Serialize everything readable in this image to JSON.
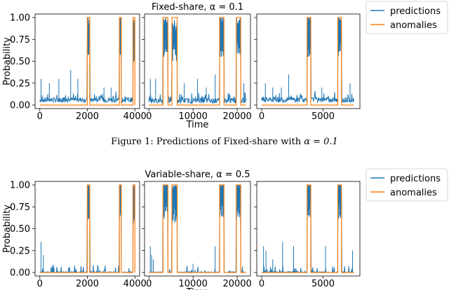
{
  "caption": {
    "prefix": "Figure 1: Predictions of Fixed-share with ",
    "math": "α = 0.1"
  },
  "colors": {
    "predictions": "#1f77b4",
    "anomalies": "#ff7f0e",
    "axis": "#000000"
  },
  "chart_data": [
    {
      "type": "line",
      "title": "Fixed-share, α = 0.1",
      "ylabel": "Probability",
      "xlabel": "Time",
      "legend": {
        "placement": "outside-right",
        "entries": [
          "predictions",
          "anomalies"
        ]
      },
      "yticks": [
        "0.00",
        "0.25",
        "0.50",
        "0.75",
        "1.00"
      ],
      "ylim": [
        -0.04,
        1.04
      ],
      "subplots": [
        {
          "xlim": [
            -200,
            4200
          ],
          "xticks": [
            0,
            2000,
            4000
          ],
          "xticklabels": [
            "0",
            "2000",
            "4000"
          ],
          "anomaly_windows": [
            [
              2000,
              2100
            ],
            [
              3350,
              3430
            ],
            [
              3920,
              4000
            ]
          ],
          "series": [
            {
              "name": "predictions",
              "baseline": 0.06,
              "noise": 0.03,
              "spikes": [
                [
                  50,
                  0.3
                ],
                [
                  400,
                  0.25
                ],
                [
                  800,
                  0.3
                ],
                [
                  1300,
                  0.4
                ],
                [
                  1600,
                  0.3
                ],
                [
                  2700,
                  0.2
                ],
                [
                  3000,
                  0.2
                ]
              ],
              "windows": [
                [
                  2000,
                  2100,
                  0.9
                ],
                [
                  3350,
                  3430,
                  0.9
                ],
                [
                  3920,
                  4000,
                  0.85
                ]
              ]
            },
            {
              "name": "anomalies",
              "step": true,
              "low": 0.0,
              "high": 1.0,
              "start": 0,
              "end": 4000
            }
          ]
        },
        {
          "xlim": [
            -1000,
            23000
          ],
          "xticks": [
            0,
            10000,
            20000
          ],
          "xticklabels": [
            "0",
            "10000",
            "20000"
          ],
          "anomaly_windows": [
            [
              3200,
              4300
            ],
            [
              5200,
              6400
            ],
            [
              16000,
              17000
            ],
            [
              19800,
              20800
            ]
          ],
          "series": [
            {
              "name": "predictions",
              "baseline": 0.05,
              "noise": 0.03,
              "spikes": [
                [
                  300,
                  0.3
                ],
                [
                  1500,
                  0.3
                ],
                [
                  8000,
                  0.25
                ],
                [
                  11000,
                  0.3
                ],
                [
                  13000,
                  0.2
                ],
                [
                  15000,
                  0.35
                ],
                [
                  21500,
                  0.25
                ]
              ],
              "windows": [
                [
                  3200,
                  4300,
                  0.9
                ],
                [
                  5200,
                  6400,
                  0.85
                ],
                [
                  16000,
                  17000,
                  0.9
                ],
                [
                  19800,
                  20800,
                  0.9
                ]
              ]
            },
            {
              "name": "anomalies",
              "step": true,
              "low": 0.0,
              "high": 1.0,
              "start": 0,
              "end": 22000
            }
          ]
        },
        {
          "xlim": [
            -400,
            8000
          ],
          "xticks": [
            0,
            5000
          ],
          "xticklabels": [
            "0",
            "5000"
          ],
          "anomaly_windows": [
            [
              3700,
              4000
            ],
            [
              6200,
              6500
            ]
          ],
          "series": [
            {
              "name": "predictions",
              "baseline": 0.06,
              "noise": 0.03,
              "spikes": [
                [
                  300,
                  0.25
                ],
                [
                  900,
                  0.2
                ],
                [
                  1600,
                  0.2
                ],
                [
                  2200,
                  0.35
                ],
                [
                  4900,
                  0.2
                ],
                [
                  7200,
                  0.25
                ]
              ],
              "windows": [
                [
                  3700,
                  4000,
                  0.9
                ],
                [
                  6200,
                  6500,
                  0.9
                ]
              ]
            },
            {
              "name": "anomalies",
              "step": true,
              "low": 0.0,
              "high": 1.0,
              "start": 0,
              "end": 7500
            }
          ]
        }
      ]
    },
    {
      "type": "line",
      "title": "Variable-share, α = 0.5",
      "ylabel": "Probability",
      "xlabel": "Time",
      "legend": {
        "placement": "outside-right",
        "entries": [
          "predictions",
          "anomalies"
        ]
      },
      "yticks": [
        "0.00",
        "0.25",
        "0.50",
        "0.75",
        "1.00"
      ],
      "ylim": [
        -0.04,
        1.04
      ],
      "subplots": [
        {
          "xlim": [
            -200,
            4200
          ],
          "xticks": [
            0,
            2000,
            4000
          ],
          "xticklabels": [
            "0",
            "2000",
            "4000"
          ],
          "anomaly_windows": [
            [
              2000,
              2100
            ],
            [
              3350,
              3430
            ],
            [
              3920,
              4000
            ]
          ],
          "series": [
            {
              "name": "predictions",
              "baseline": 0.0,
              "noise": 0.01,
              "spikes": [
                [
                  50,
                  0.35
                ],
                [
                  150,
                  0.2
                ],
                [
                  600,
                  0.05
                ],
                [
                  1200,
                  0.05
                ]
              ],
              "windows": [
                [
                  2000,
                  2100,
                  0.95
                ],
                [
                  3350,
                  3430,
                  0.95
                ],
                [
                  3920,
                  4000,
                  0.9
                ]
              ]
            },
            {
              "name": "anomalies",
              "step": true,
              "low": 0.0,
              "high": 1.0,
              "start": 0,
              "end": 4000
            }
          ]
        },
        {
          "xlim": [
            -1000,
            23000
          ],
          "xticks": [
            0,
            10000,
            20000
          ],
          "xticklabels": [
            "0",
            "10000",
            "20000"
          ],
          "anomaly_windows": [
            [
              3200,
              4300
            ],
            [
              5200,
              6400
            ],
            [
              16000,
              17000
            ],
            [
              19800,
              20800
            ]
          ],
          "series": [
            {
              "name": "predictions",
              "baseline": 0.0,
              "noise": 0.01,
              "spikes": [
                [
                  300,
                  0.3
                ],
                [
                  600,
                  0.2
                ],
                [
                  1000,
                  0.15
                ],
                [
                  10000,
                  0.1
                ],
                [
                  15000,
                  0.3
                ]
              ],
              "windows": [
                [
                  3200,
                  4300,
                  0.95
                ],
                [
                  5200,
                  6400,
                  0.9
                ],
                [
                  16000,
                  17000,
                  0.95
                ],
                [
                  19800,
                  20800,
                  0.95
                ]
              ]
            },
            {
              "name": "anomalies",
              "step": true,
              "low": 0.0,
              "high": 1.0,
              "start": 0,
              "end": 22000
            }
          ]
        },
        {
          "xlim": [
            -400,
            8000
          ],
          "xticks": [
            0,
            5000
          ],
          "xticklabels": [
            "0",
            "5000"
          ],
          "anomaly_windows": [
            [
              3700,
              4000
            ],
            [
              6200,
              6500
            ]
          ],
          "series": [
            {
              "name": "predictions",
              "baseline": 0.0,
              "noise": 0.01,
              "spikes": [
                [
                  150,
                  0.3
                ],
                [
                  350,
                  0.25
                ],
                [
                  900,
                  0.15
                ],
                [
                  1700,
                  0.35
                ],
                [
                  2600,
                  0.3
                ],
                [
                  5200,
                  0.3
                ],
                [
                  7400,
                  0.25
                ]
              ],
              "windows": [
                [
                  3700,
                  4000,
                  0.95
                ],
                [
                  6200,
                  6500,
                  0.95
                ]
              ]
            },
            {
              "name": "anomalies",
              "step": true,
              "low": 0.0,
              "high": 1.0,
              "start": 0,
              "end": 7500
            }
          ]
        }
      ]
    }
  ]
}
